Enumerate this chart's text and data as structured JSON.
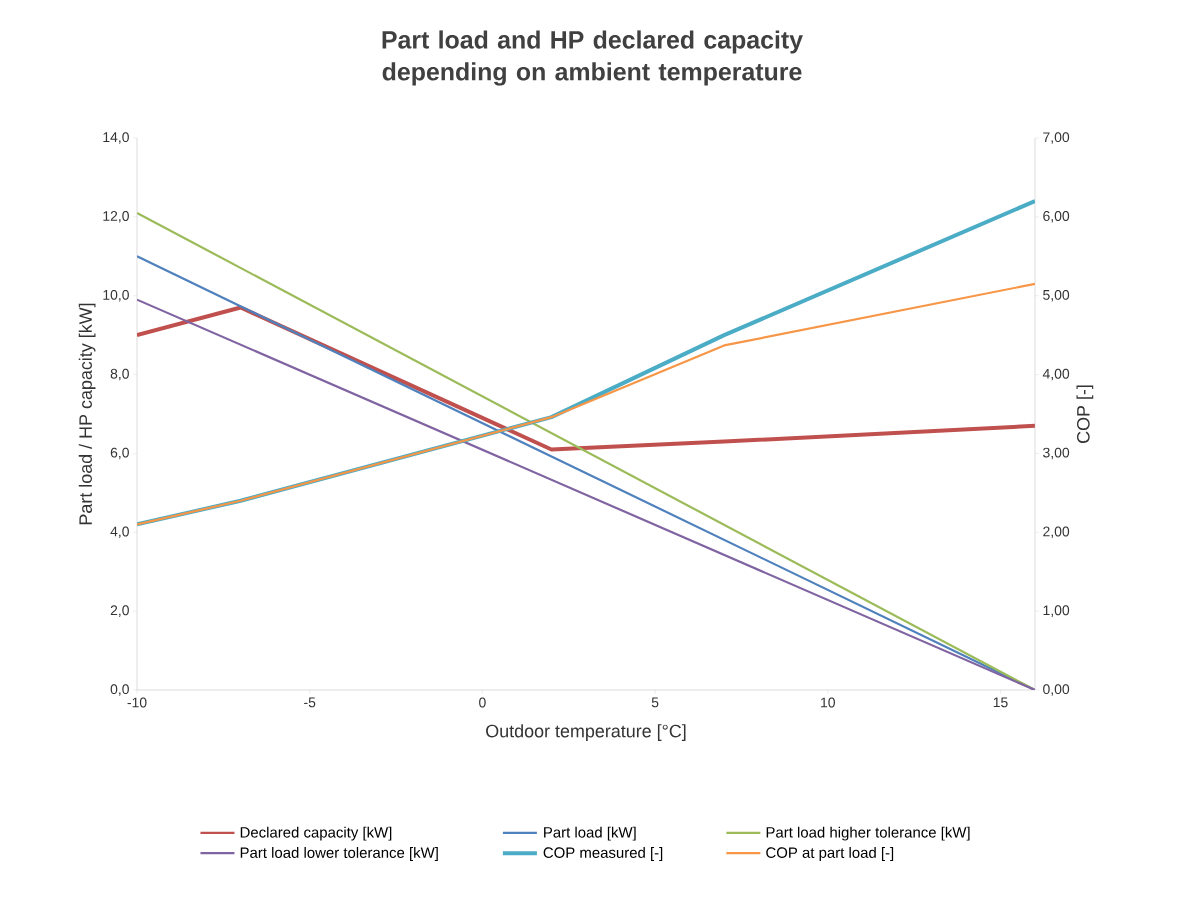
{
  "chart_data": {
    "type": "line",
    "title": "Part load and HP declared capacity depending on ambient temperature",
    "xlabel": "Outdoor temperature [°C]",
    "ylabel": "Part load / HP capacity [kW]",
    "y2label": "COP [-]",
    "xlim": [
      -10,
      16
    ],
    "xticks": [
      -10,
      -5,
      0,
      5,
      10,
      15
    ],
    "ylim": [
      0,
      14
    ],
    "yticks": [
      {
        "value": 0,
        "label": "0,0"
      },
      {
        "value": 2,
        "label": "2,0"
      },
      {
        "value": 4,
        "label": "4,0"
      },
      {
        "value": 6,
        "label": "6,0"
      },
      {
        "value": 8,
        "label": "8,0"
      },
      {
        "value": 10,
        "label": "10,0"
      },
      {
        "value": 12,
        "label": "12,0"
      },
      {
        "value": 14,
        "label": "14,0"
      }
    ],
    "y2lim": [
      0,
      7
    ],
    "y2ticks": [
      {
        "value": 0,
        "label": "0,00"
      },
      {
        "value": 1,
        "label": "1,00"
      },
      {
        "value": 2,
        "label": "2,00"
      },
      {
        "value": 3,
        "label": "3,00"
      },
      {
        "value": 4,
        "label": "4,00"
      },
      {
        "value": 5,
        "label": "5,00"
      },
      {
        "value": 6,
        "label": "6,00"
      },
      {
        "value": 7,
        "label": "7,00"
      }
    ],
    "grid": false,
    "legend": "bottom",
    "marker": "none",
    "line_style": "solid",
    "series": [
      {
        "name": "Declared capacity [kW]",
        "color": "#c0504d",
        "x": [
          -10,
          -7,
          2,
          7,
          16
        ],
        "values": [
          9.0,
          9.7,
          6.1,
          6.3,
          6.7
        ]
      },
      {
        "name": "Part load [kW]",
        "color": "#4f81bd",
        "x": [
          -10,
          16
        ],
        "values": [
          11.0,
          0
        ]
      },
      {
        "name": "Part load higher tolerance [kW]",
        "color": "#9bbb59",
        "x": [
          -10,
          16
        ],
        "values": [
          12.1,
          0
        ]
      },
      {
        "name": "Part load lower tolerance [kW]",
        "color": "#8064a2",
        "x": [
          -10,
          16
        ],
        "values": [
          9.9,
          0
        ]
      },
      {
        "name": "COP measured [-]",
        "color": "#4bacc6",
        "axis": "y2",
        "x": [
          -10,
          -7,
          2,
          7,
          16
        ],
        "values": [
          2.1,
          2.4,
          3.46,
          4.5,
          6.2
        ]
      },
      {
        "name": "COP at part load [-]",
        "color": "#f79646",
        "axis": "y2",
        "x": [
          -10,
          -7,
          2,
          7,
          16
        ],
        "values": [
          2.1,
          2.4,
          3.46,
          4.37,
          5.15
        ]
      }
    ]
  }
}
